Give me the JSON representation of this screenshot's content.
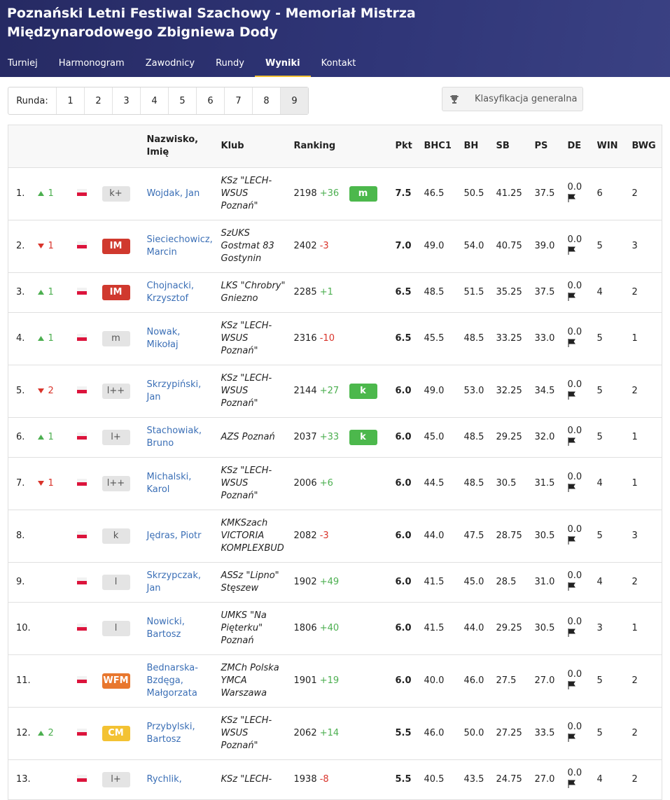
{
  "header": {
    "title": "Poznański Letni Festiwal Szachowy - Memoriał Mistrza Międzynarodowego Zbigniewa Dody",
    "nav": [
      "Turniej",
      "Harmonogram",
      "Zawodnicy",
      "Rundy",
      "Wyniki",
      "Kontakt"
    ]
  },
  "rounds": {
    "label": "Runda:",
    "values": [
      1,
      2,
      3,
      4,
      5,
      6,
      7,
      8,
      9
    ]
  },
  "button": "Klasyfikacja generalna",
  "table": {
    "columns": [
      "Nazwisko, Imię",
      "Klub",
      "Ranking",
      "Pkt",
      "BHC1",
      "BH",
      "SB",
      "PS",
      "DE",
      "WIN",
      "BWG"
    ],
    "rows": [
      {
        "rank": "1.",
        "change": {
          "dir": "up",
          "value": 1
        },
        "title": "k+",
        "title_color": "#e4e4e4",
        "name": "Wojdak, Jan",
        "club": "KSz \"LECH-WSUS Poznań\"",
        "ranking": 2198,
        "ranking_change": "+36",
        "norm": "m",
        "pkt": "7.5",
        "bhc1": "46.5",
        "bh": "50.5",
        "sb": "41.25",
        "ps": "37.5",
        "de": "0.0",
        "win": 6,
        "bwg": 2
      },
      {
        "rank": "2.",
        "change": {
          "dir": "down",
          "value": 1
        },
        "title": "IM",
        "title_color": "#d0392e",
        "name": "Sieciechowicz, Marcin",
        "club": "SzUKS Gostmat 83 Gostynin",
        "ranking": 2402,
        "ranking_change": "-3",
        "norm": null,
        "pkt": "7.0",
        "bhc1": "49.0",
        "bh": "54.0",
        "sb": "40.75",
        "ps": "39.0",
        "de": "0.0",
        "win": 5,
        "bwg": 3
      },
      {
        "rank": "3.",
        "change": {
          "dir": "up",
          "value": 1
        },
        "title": "IM",
        "title_color": "#d0392e",
        "name": "Chojnacki, Krzysztof",
        "club": "LKS \"Chrobry\" Gniezno",
        "ranking": 2285,
        "ranking_change": "+1",
        "norm": null,
        "pkt": "6.5",
        "bhc1": "48.5",
        "bh": "51.5",
        "sb": "35.25",
        "ps": "37.5",
        "de": "0.0",
        "win": 4,
        "bwg": 2
      },
      {
        "rank": "4.",
        "change": {
          "dir": "up",
          "value": 1
        },
        "title": "m",
        "title_color": "#e4e4e4",
        "name": "Nowak, Mikołaj",
        "club": "KSz \"LECH-WSUS Poznań\"",
        "ranking": 2316,
        "ranking_change": "-10",
        "norm": null,
        "pkt": "6.5",
        "bhc1": "45.5",
        "bh": "48.5",
        "sb": "33.25",
        "ps": "33.0",
        "de": "0.0",
        "win": 5,
        "bwg": 1
      },
      {
        "rank": "5.",
        "change": {
          "dir": "down",
          "value": 2
        },
        "title": "l++",
        "title_color": "#e4e4e4",
        "name": "Skrzypiński, Jan",
        "club": "KSz \"LECH-WSUS Poznań\"",
        "ranking": 2144,
        "ranking_change": "+27",
        "norm": "k",
        "pkt": "6.0",
        "bhc1": "49.0",
        "bh": "53.0",
        "sb": "32.25",
        "ps": "34.5",
        "de": "0.0",
        "win": 5,
        "bwg": 2
      },
      {
        "rank": "6.",
        "change": {
          "dir": "up",
          "value": 1
        },
        "title": "l+",
        "title_color": "#e4e4e4",
        "name": "Stachowiak, Bruno",
        "club": "AZS Poznań",
        "ranking": 2037,
        "ranking_change": "+33",
        "norm": "k",
        "pkt": "6.0",
        "bhc1": "45.0",
        "bh": "48.5",
        "sb": "29.25",
        "ps": "32.0",
        "de": "0.0",
        "win": 5,
        "bwg": 1
      },
      {
        "rank": "7.",
        "change": {
          "dir": "down",
          "value": 1
        },
        "title": "l++",
        "title_color": "#e4e4e4",
        "name": "Michalski, Karol",
        "club": "KSz \"LECH-WSUS Poznań\"",
        "ranking": 2006,
        "ranking_change": "+6",
        "norm": null,
        "pkt": "6.0",
        "bhc1": "44.5",
        "bh": "48.5",
        "sb": "30.5",
        "ps": "31.5",
        "de": "0.0",
        "win": 4,
        "bwg": 1
      },
      {
        "rank": "8.",
        "change": null,
        "title": "k",
        "title_color": "#e4e4e4",
        "name": "Jędras, Piotr",
        "club": "KMKSzach VICTORIA KOMPLEXBUD",
        "ranking": 2082,
        "ranking_change": "-3",
        "norm": null,
        "pkt": "6.0",
        "bhc1": "44.0",
        "bh": "47.5",
        "sb": "28.75",
        "ps": "30.5",
        "de": "0.0",
        "win": 5,
        "bwg": 3
      },
      {
        "rank": "9.",
        "change": null,
        "title": "l",
        "title_color": "#e4e4e4",
        "name": "Skrzypczak, Jan",
        "club": "ASSz \"Lipno\" Stęszew",
        "ranking": 1902,
        "ranking_change": "+49",
        "norm": null,
        "pkt": "6.0",
        "bhc1": "41.5",
        "bh": "45.0",
        "sb": "28.5",
        "ps": "31.0",
        "de": "0.0",
        "win": 4,
        "bwg": 2
      },
      {
        "rank": "10.",
        "change": null,
        "title": "l",
        "title_color": "#e4e4e4",
        "name": "Nowicki, Bartosz",
        "club": "UMKS \"Na Pięterku\" Poznań",
        "ranking": 1806,
        "ranking_change": "+40",
        "norm": null,
        "pkt": "6.0",
        "bhc1": "41.5",
        "bh": "44.0",
        "sb": "29.25",
        "ps": "30.5",
        "de": "0.0",
        "win": 3,
        "bwg": 1
      },
      {
        "rank": "11.",
        "change": null,
        "title": "WFM",
        "title_color": "#e8772e",
        "name": "Bednarska-Bzdęga, Małgorzata",
        "club": "ZMCh Polska YMCA Warszawa",
        "ranking": 1901,
        "ranking_change": "+19",
        "norm": null,
        "pkt": "6.0",
        "bhc1": "40.0",
        "bh": "46.0",
        "sb": "27.5",
        "ps": "27.0",
        "de": "0.0",
        "win": 5,
        "bwg": 2
      },
      {
        "rank": "12.",
        "change": {
          "dir": "up",
          "value": 2
        },
        "title": "CM",
        "title_color": "#f3c233",
        "name": "Przybylski, Bartosz",
        "club": "KSz \"LECH-WSUS Poznań\"",
        "ranking": 2062,
        "ranking_change": "+14",
        "norm": null,
        "pkt": "5.5",
        "bhc1": "46.0",
        "bh": "50.0",
        "sb": "27.25",
        "ps": "33.5",
        "de": "0.0",
        "win": 5,
        "bwg": 2
      },
      {
        "rank": "13.",
        "change": null,
        "title": "l+",
        "title_color": "#e4e4e4",
        "name": "Rychlik,",
        "club": "KSz \"LECH-",
        "ranking": 1938,
        "ranking_change": "-8",
        "norm": null,
        "pkt": "5.5",
        "bhc1": "40.5",
        "bh": "43.5",
        "sb": "24.75",
        "ps": "27.0",
        "de": "0.0",
        "win": 4,
        "bwg": 2
      }
    ]
  }
}
